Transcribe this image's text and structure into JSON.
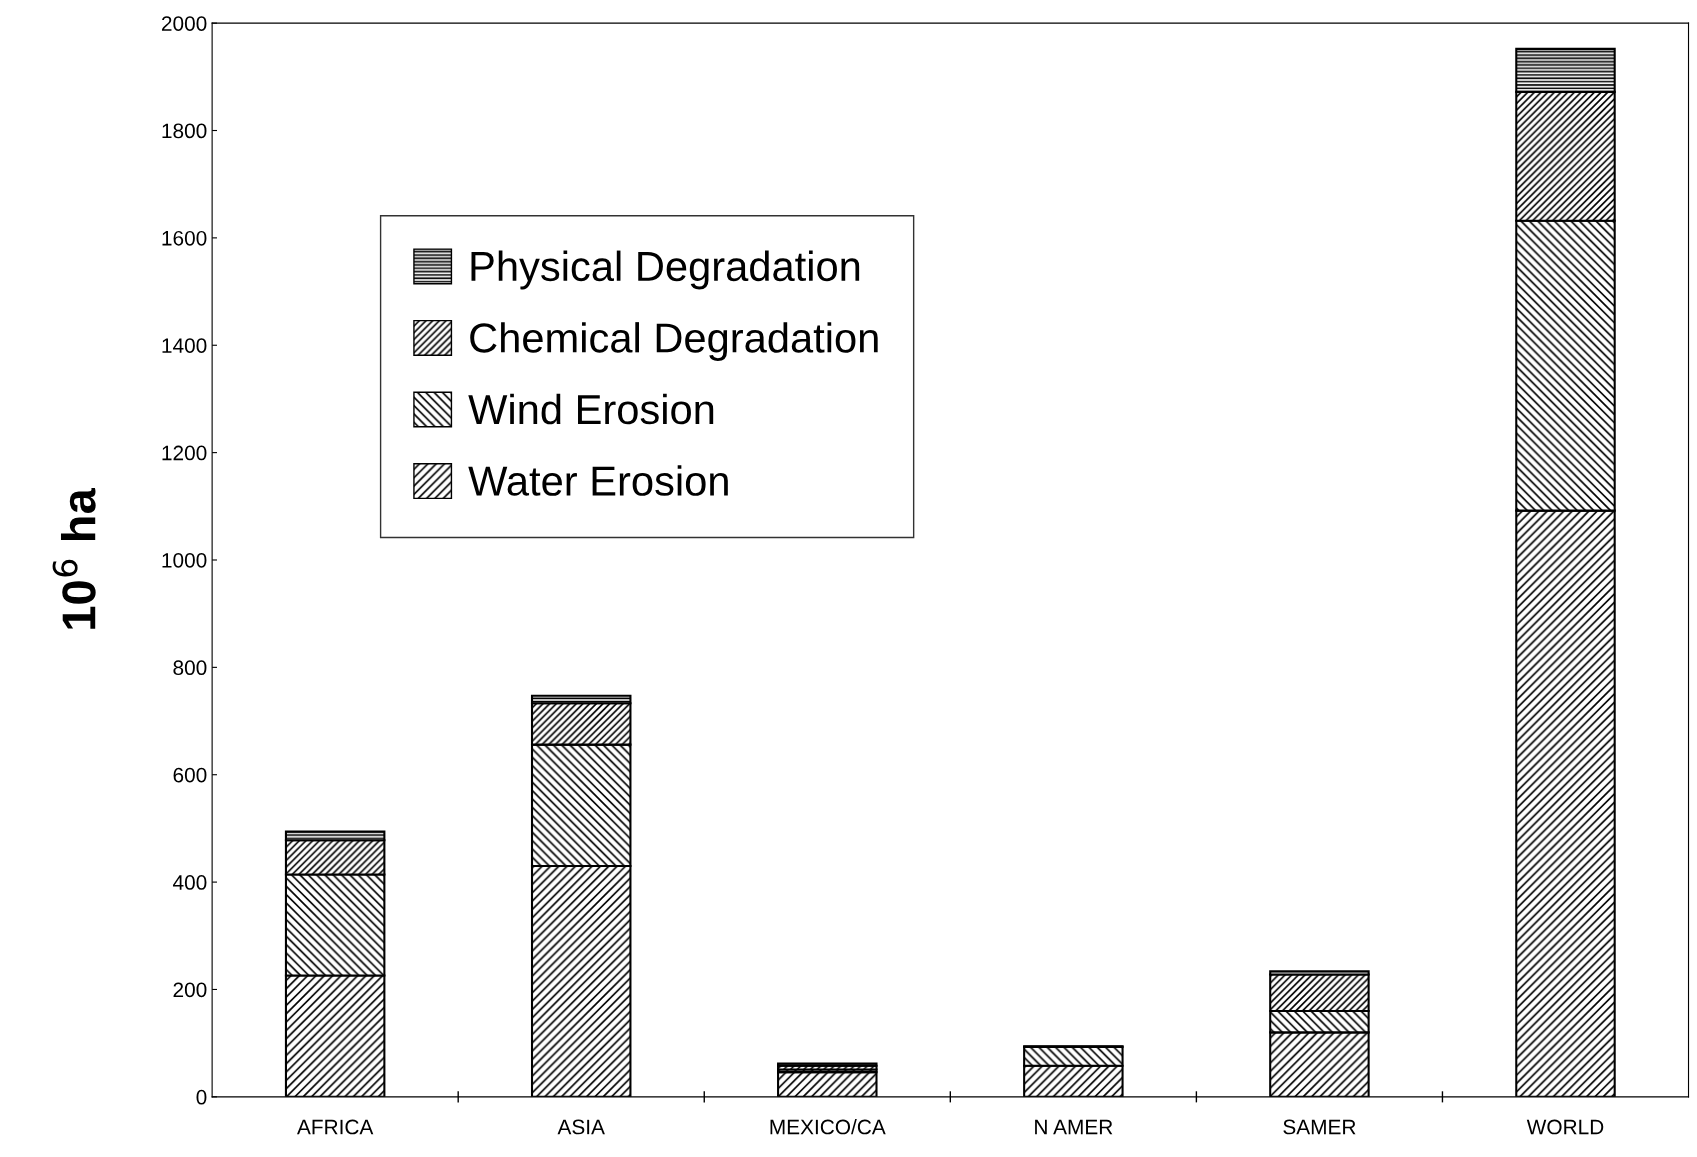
{
  "chart_data": {
    "type": "bar",
    "stacked": true,
    "ylabel": "10$^{6}$ ha",
    "categories": [
      "AFRICA",
      "ASIA",
      "MEXICO/CA",
      "N AMER",
      "SAMER",
      "WORLD"
    ],
    "series": [
      {
        "name": "Water Erosion",
        "color": "#000000",
        "values": [
          226,
          430,
          46,
          58,
          120,
          1092
        ]
      },
      {
        "name": "Wind Erosion",
        "color": "#000000",
        "values": [
          188,
          226,
          5,
          35,
          40,
          540
        ]
      },
      {
        "name": "Chemical Degradation",
        "color": "#000000",
        "values": [
          64,
          77,
          7,
          0,
          68,
          240
        ]
      },
      {
        "name": "Physical Degradation",
        "color": "#000000",
        "values": [
          16,
          14,
          4,
          1,
          6,
          80
        ]
      }
    ],
    "ylim": [
      0,
      2000
    ],
    "yticks": [
      0,
      200,
      400,
      600,
      800,
      1000,
      1200,
      1400,
      1600,
      1800,
      2000
    ],
    "grid": false,
    "legend": "top left"
  }
}
